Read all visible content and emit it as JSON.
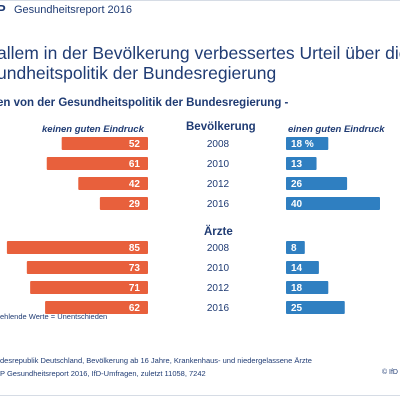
{
  "header": {
    "brand": "P",
    "report": "Gesundheitsreport 2016"
  },
  "title_line1": "allem in der Bevölkerung verbessertes Urteil über die",
  "title_line2": "undheitspolitik der Bundesregierung",
  "subtitle": "en von der Gesundheitspolitik der Bundesregierung -",
  "footnote": "ehlende Werte = Unentschieden",
  "source_line1": "desrepublik Deutschland, Bevölkerung ab 16 Jahre, Krankenhaus- und niedergelassene Ärzte",
  "source_line2": "P Gesundheitsreport 2016, IfD-Umfragen, zuletzt 11058, 7242",
  "copyright": "© IfD",
  "chart_data": {
    "type": "bar",
    "left_header": "keinen guten Eindruck",
    "right_header": "einen guten Eindruck",
    "colors": {
      "left": "#e8603c",
      "right": "#2f7fc1",
      "text": "#1f3b73"
    },
    "groups": [
      {
        "name": "Bevölkerung",
        "years": [
          "2008",
          "2010",
          "2012",
          "2016"
        ],
        "left_values": [
          52,
          61,
          42,
          29
        ],
        "right_values": [
          18,
          13,
          26,
          40
        ],
        "right_labels": [
          "18 %",
          "13",
          "26",
          "40"
        ]
      },
      {
        "name": "Ärzte",
        "years": [
          "2008",
          "2010",
          "2012",
          "2016"
        ],
        "left_values": [
          85,
          73,
          71,
          62
        ],
        "right_values": [
          8,
          14,
          18,
          25
        ],
        "right_labels": [
          "8",
          "14",
          "18",
          "25"
        ]
      }
    ]
  }
}
